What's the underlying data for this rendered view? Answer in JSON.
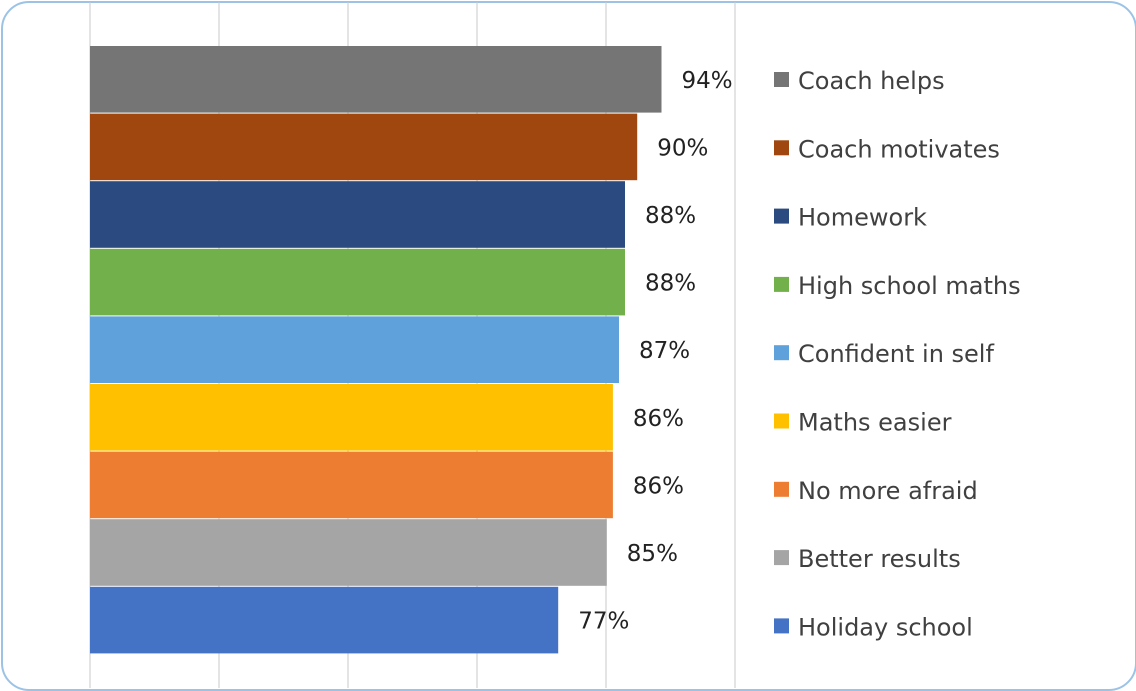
{
  "chart_data": {
    "type": "bar",
    "orientation": "horizontal",
    "title": "",
    "xlabel": "",
    "ylabel": "",
    "xlim": [
      0,
      100
    ],
    "grid": true,
    "legend_position": "right",
    "series": [
      {
        "name": "Coach helps",
        "value": 94,
        "label": "94%",
        "color": "#757575"
      },
      {
        "name": "Coach motivates",
        "value": 90,
        "label": "90%",
        "color": "#a0470f"
      },
      {
        "name": "Homework",
        "value": 88,
        "label": "88%",
        "color": "#2b4a80"
      },
      {
        "name": "High school maths",
        "value": 88,
        "label": "88%",
        "color": "#72b04b"
      },
      {
        "name": "Confident in self",
        "value": 87,
        "label": "87%",
        "color": "#5fa1db"
      },
      {
        "name": "Maths easier",
        "value": 86,
        "label": "86%",
        "color": "#ffc000"
      },
      {
        "name": "No more afraid",
        "value": 86,
        "label": "86%",
        "color": "#ed7d31"
      },
      {
        "name": "Better results",
        "value": 85,
        "label": "85%",
        "color": "#a5a5a5"
      },
      {
        "name": "Holiday school",
        "value": 77,
        "label": "77%",
        "color": "#4472c4"
      }
    ]
  }
}
